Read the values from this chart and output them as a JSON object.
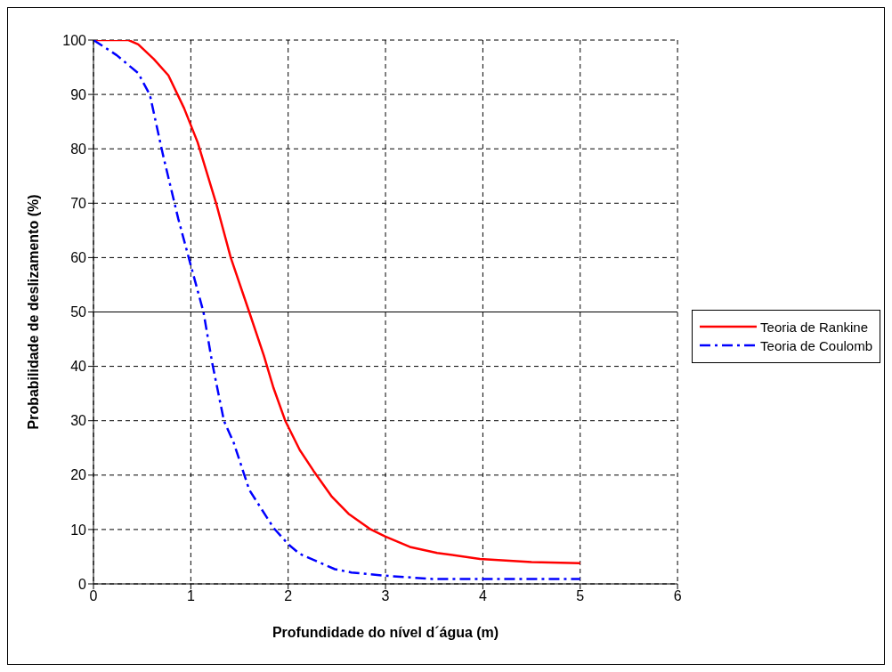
{
  "chart_data": {
    "type": "line",
    "xlabel": "Profundidade do nível d´água (m)",
    "ylabel": "Probabilidade de deslizamento (%)",
    "xlim": [
      0,
      6
    ],
    "xticks": [
      0,
      1,
      2,
      3,
      4,
      5,
      6
    ],
    "ylim": [
      0,
      100
    ],
    "yticks": [
      0,
      10,
      20,
      30,
      40,
      50,
      60,
      70,
      80,
      90,
      100
    ],
    "grid": true,
    "legend": "right",
    "marker": "none",
    "ref_lines": [
      {
        "axis": "y",
        "value": 50
      }
    ],
    "series": [
      {
        "name": "Teoria de Rankine",
        "color": "#ff0000",
        "line_style": "solid",
        "x": [
          0,
          0.36,
          0.46,
          0.62,
          0.77,
          0.93,
          1.07,
          1.26,
          1.41,
          1.6,
          1.75,
          1.85,
          1.97,
          2.12,
          2.26,
          2.45,
          2.62,
          2.85,
          3.0,
          3.25,
          3.53,
          3.97,
          4.5,
          5
        ],
        "values": [
          100,
          100,
          99.2,
          96.5,
          93.5,
          87.5,
          81.2,
          70,
          60,
          50,
          42,
          36,
          30,
          24.6,
          20.8,
          16,
          12.9,
          10,
          8.7,
          6.8,
          5.7,
          4.6,
          4.0,
          3.8
        ]
      },
      {
        "name": "Teoria de Coulomb",
        "color": "#0000ff",
        "line_style": "dashed",
        "x": [
          0,
          0.24,
          0.46,
          0.58,
          0.71,
          0.87,
          1.01,
          1.13,
          1.22,
          1.34,
          1.44,
          1.6,
          1.85,
          2.0,
          2.12,
          2.48,
          2.65,
          3.0,
          3.48,
          5
        ],
        "values": [
          100,
          97.2,
          93.9,
          89.9,
          79.2,
          67.2,
          57.9,
          50,
          40.6,
          30,
          26,
          17.3,
          10.3,
          7.3,
          5.5,
          2.7,
          2.1,
          1.5,
          0.9,
          0.9
        ]
      }
    ]
  }
}
